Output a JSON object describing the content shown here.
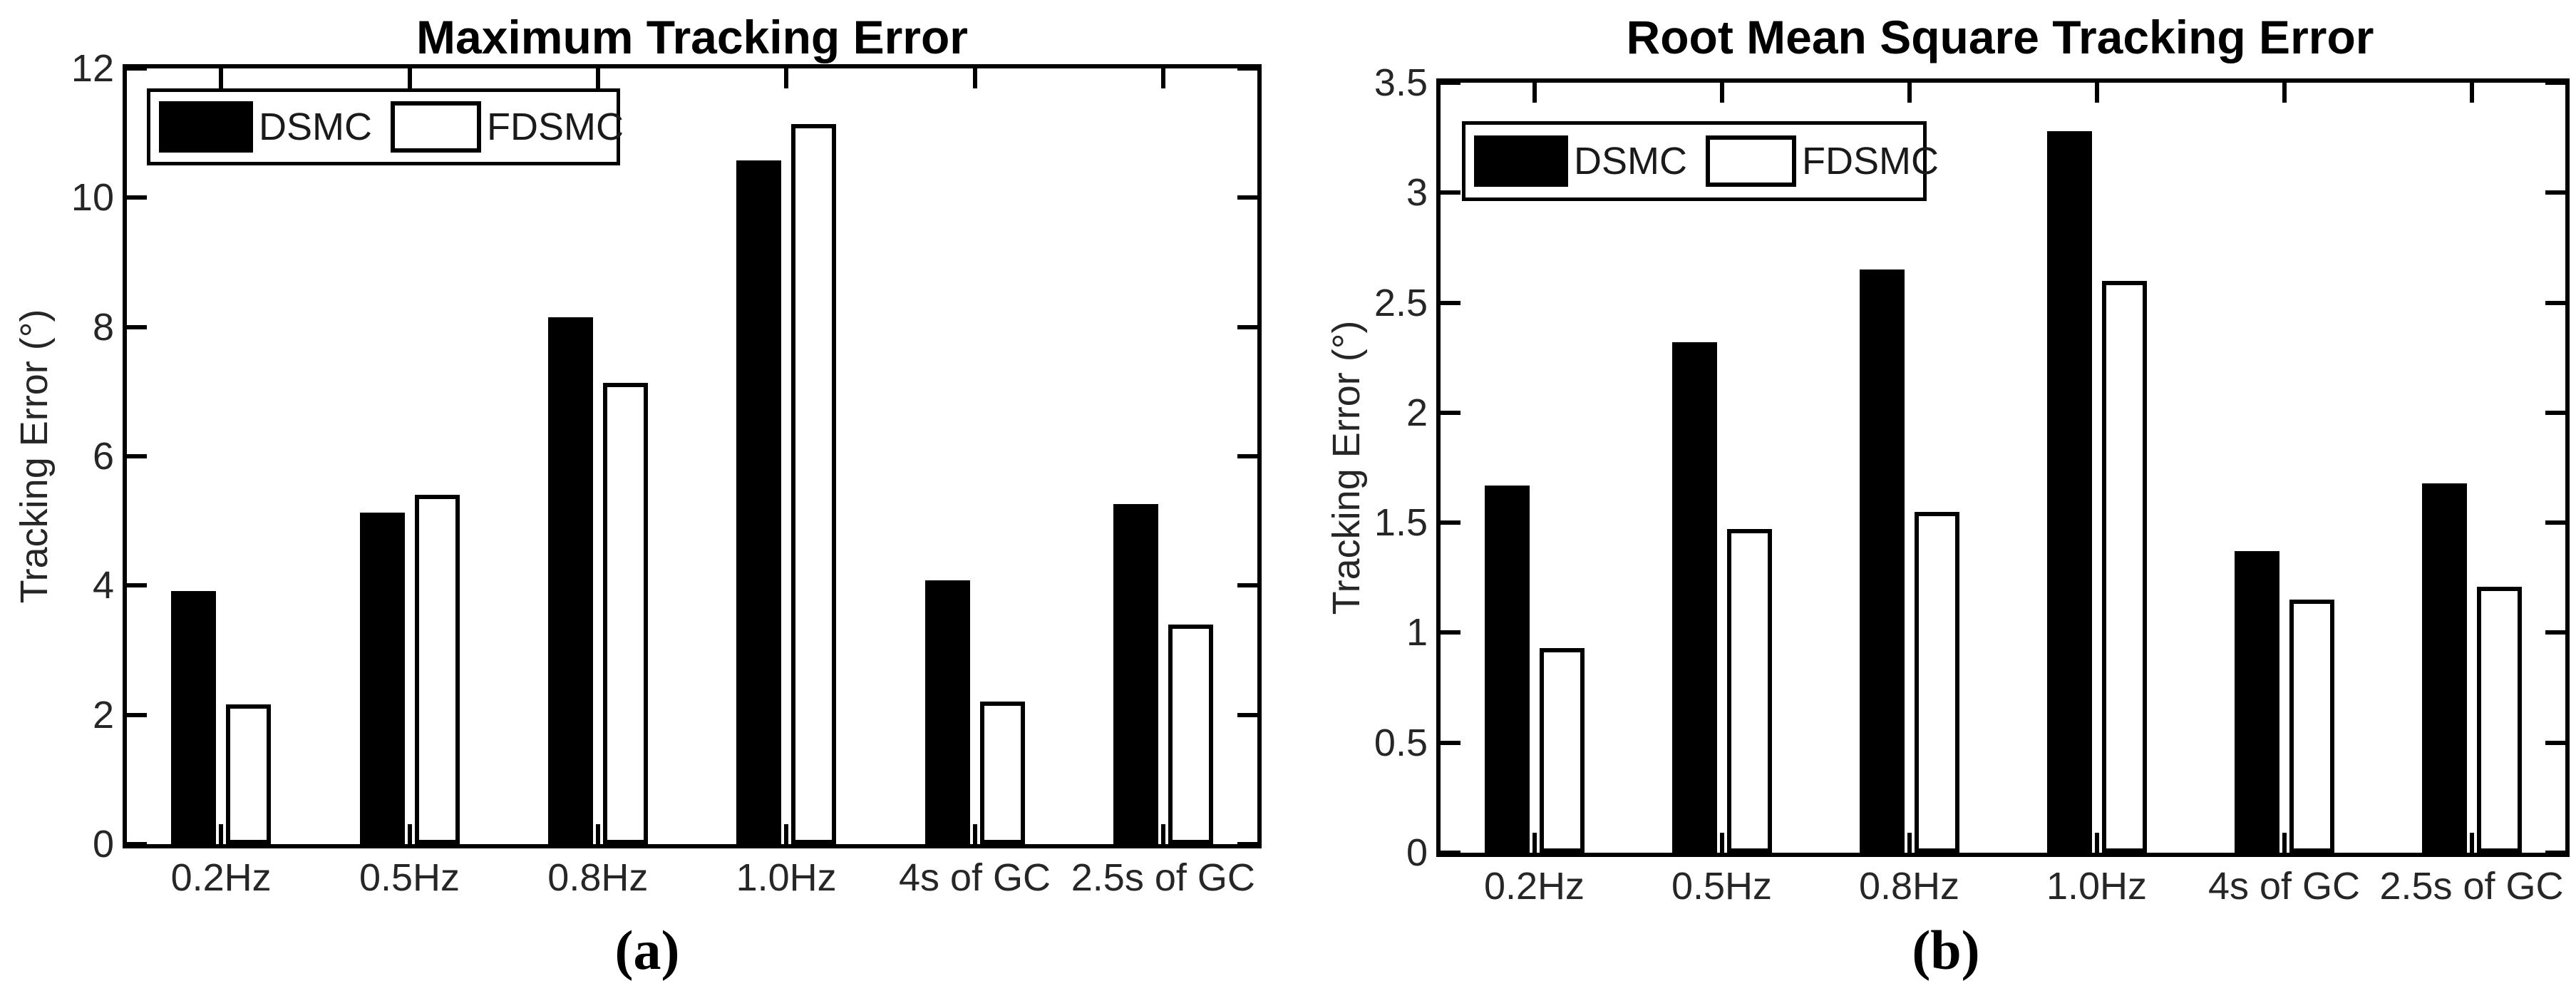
{
  "page": {
    "background": "#ffffff"
  },
  "colors": {
    "axis": "#000000",
    "tick_label": "#262626",
    "title": "#000000",
    "bar_dsmc_fill": "#000000",
    "bar_fdsmc_fill": "#ffffff",
    "bar_edge": "#000000"
  },
  "chart_data": [
    {
      "type": "bar",
      "title": "Maximum Tracking Error",
      "xlabel": "",
      "ylabel": "Tracking Error (°)",
      "caption": "(a)",
      "categories": [
        "0.2Hz",
        "0.5Hz",
        "0.8Hz",
        "1.0Hz",
        "4s of GC",
        "2.5s of GC"
      ],
      "series": [
        {
          "name": "DSMC",
          "fill": "#000000",
          "values": [
            3.92,
            5.13,
            8.15,
            10.58,
            4.08,
            5.26
          ]
        },
        {
          "name": "FDSMC",
          "fill": "#ffffff",
          "values": [
            2.16,
            5.41,
            7.14,
            11.14,
            2.21,
            3.4
          ]
        }
      ],
      "ylim": [
        0,
        12
      ],
      "yticks": [
        0,
        2,
        4,
        6,
        8,
        10,
        12
      ],
      "grid": false,
      "legend_position": "top-left"
    },
    {
      "type": "bar",
      "title": "Root Mean Square Tracking Error",
      "xlabel": "",
      "ylabel": "Tracking Error (°)",
      "caption": "(b)",
      "categories": [
        "0.2Hz",
        "0.5Hz",
        "0.8Hz",
        "1.0Hz",
        "4s of GC",
        "2.5s of GC"
      ],
      "series": [
        {
          "name": "DSMC",
          "fill": "#000000",
          "values": [
            1.67,
            2.32,
            2.65,
            3.28,
            1.37,
            1.68
          ]
        },
        {
          "name": "FDSMC",
          "fill": "#ffffff",
          "values": [
            0.93,
            1.47,
            1.55,
            2.6,
            1.15,
            1.21
          ]
        }
      ],
      "ylim": [
        0,
        3.5
      ],
      "yticks": [
        0,
        0.5,
        1,
        1.5,
        2,
        2.5,
        3,
        3.5
      ],
      "grid": false,
      "legend_position": "top-left"
    }
  ]
}
